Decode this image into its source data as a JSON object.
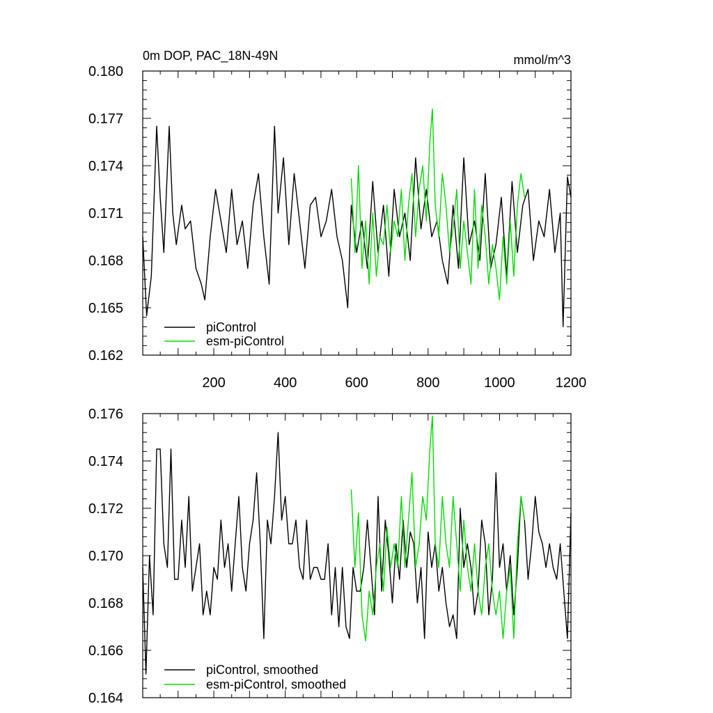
{
  "figure": {
    "title_left": "0m DOP, PAC_18N-49N",
    "title_right": "mmol/m^3"
  },
  "chart_data": [
    {
      "type": "line",
      "title": "0m DOP, PAC_18N-49N",
      "units": "mmol/m^3",
      "xlim": [
        1,
        1200
      ],
      "ylim": [
        0.162,
        0.18
      ],
      "x_ticks": [
        200,
        400,
        600,
        800,
        1000,
        1200
      ],
      "y_ticks": [
        0.162,
        0.165,
        0.168,
        0.171,
        0.174,
        0.177,
        0.18
      ],
      "y_tick_labels": [
        "0.162",
        "0.165",
        "0.168",
        "0.171",
        "0.174",
        "0.177",
        "0.180"
      ],
      "x_tick_labels": [
        "200",
        "400",
        "600",
        "800",
        "1000",
        "1200"
      ],
      "legend": [
        {
          "name": "piControl",
          "color": "#000000"
        },
        {
          "name": "esm-piControl",
          "color": "#00dd00"
        }
      ],
      "series": [
        {
          "name": "piControl",
          "color": "#000000",
          "x": [
            1,
            12,
            25,
            40,
            50,
            60,
            75,
            85,
            95,
            110,
            120,
            135,
            150,
            165,
            175,
            190,
            205,
            220,
            235,
            250,
            265,
            280,
            295,
            310,
            325,
            340,
            355,
            370,
            380,
            395,
            410,
            425,
            440,
            455,
            470,
            485,
            500,
            515,
            530,
            545,
            560,
            575,
            585,
            600,
            615,
            630,
            645,
            660,
            675,
            690,
            705,
            720,
            735,
            750,
            765,
            780,
            795,
            810,
            825,
            840,
            855,
            870,
            885,
            900,
            915,
            930,
            945,
            960,
            975,
            990,
            1005,
            1020,
            1035,
            1050,
            1065,
            1080,
            1095,
            1110,
            1125,
            1140,
            1155,
            1170,
            1178,
            1190,
            1200
          ],
          "y": [
            0.1695,
            0.1645,
            0.167,
            0.1765,
            0.172,
            0.1685,
            0.1765,
            0.171,
            0.169,
            0.1715,
            0.17,
            0.1705,
            0.1675,
            0.1665,
            0.1655,
            0.1695,
            0.1725,
            0.1705,
            0.1685,
            0.1725,
            0.169,
            0.1705,
            0.1675,
            0.1715,
            0.1735,
            0.1695,
            0.1665,
            0.1765,
            0.171,
            0.1745,
            0.169,
            0.1735,
            0.1705,
            0.1675,
            0.1715,
            0.172,
            0.1695,
            0.1705,
            0.1725,
            0.1695,
            0.168,
            0.165,
            0.1715,
            0.1685,
            0.1705,
            0.1675,
            0.173,
            0.1685,
            0.1715,
            0.167,
            0.1725,
            0.1695,
            0.171,
            0.168,
            0.1745,
            0.17,
            0.1725,
            0.1695,
            0.1705,
            0.168,
            0.1665,
            0.1715,
            0.1675,
            0.1745,
            0.169,
            0.1705,
            0.168,
            0.1735,
            0.1675,
            0.169,
            0.172,
            0.167,
            0.173,
            0.1685,
            0.1715,
            0.1725,
            0.168,
            0.1705,
            0.1695,
            0.1725,
            0.1685,
            0.171,
            0.1638,
            0.1733,
            0.172
          ]
        },
        {
          "name": "esm-piControl",
          "color": "#00dd00",
          "x": [
            585,
            595,
            605,
            615,
            625,
            635,
            645,
            655,
            665,
            675,
            685,
            695,
            705,
            715,
            725,
            735,
            745,
            755,
            765,
            775,
            785,
            795,
            805,
            812,
            820,
            830,
            840,
            850,
            860,
            870,
            880,
            890,
            900,
            910,
            920,
            930,
            940,
            950,
            960,
            970,
            980,
            990,
            1000,
            1010,
            1020,
            1030,
            1040,
            1050,
            1060,
            1070
          ],
          "y": [
            0.1732,
            0.1685,
            0.174,
            0.1675,
            0.1705,
            0.1665,
            0.171,
            0.167,
            0.1695,
            0.169,
            0.1715,
            0.1685,
            0.1705,
            0.1695,
            0.1725,
            0.168,
            0.1715,
            0.1735,
            0.1695,
            0.1725,
            0.174,
            0.1705,
            0.1755,
            0.1776,
            0.1715,
            0.1695,
            0.1735,
            0.1715,
            0.1685,
            0.17,
            0.1725,
            0.1675,
            0.1705,
            0.1685,
            0.1665,
            0.1725,
            0.1675,
            0.1715,
            0.1695,
            0.1665,
            0.169,
            0.1675,
            0.1655,
            0.1695,
            0.1665,
            0.1705,
            0.167,
            0.1715,
            0.1735,
            0.172
          ]
        }
      ]
    },
    {
      "type": "line",
      "xlim": [
        1,
        1200
      ],
      "ylim": [
        0.164,
        0.176
      ],
      "x_ticks": [
        200,
        400,
        600,
        800,
        1000,
        1200
      ],
      "y_ticks": [
        0.164,
        0.166,
        0.168,
        0.17,
        0.172,
        0.174,
        0.176
      ],
      "y_tick_labels": [
        "0.164",
        "0.166",
        "0.168",
        "0.170",
        "0.172",
        "0.174",
        "0.176"
      ],
      "legend": [
        {
          "name": "piControl, smoothed",
          "color": "#000000"
        },
        {
          "name": "esm-piControl, smoothed",
          "color": "#00dd00"
        }
      ],
      "series": [
        {
          "name": "piControl, smoothed",
          "color": "#000000",
          "x": [
            1,
            10,
            20,
            30,
            40,
            50,
            60,
            70,
            80,
            90,
            100,
            110,
            120,
            130,
            140,
            150,
            160,
            170,
            180,
            190,
            200,
            210,
            220,
            230,
            240,
            250,
            260,
            270,
            280,
            290,
            300,
            310,
            320,
            330,
            340,
            350,
            360,
            370,
            380,
            390,
            400,
            410,
            420,
            430,
            440,
            450,
            460,
            470,
            480,
            490,
            500,
            510,
            520,
            530,
            540,
            550,
            560,
            570,
            580,
            590,
            600,
            610,
            620,
            630,
            640,
            650,
            660,
            670,
            680,
            690,
            700,
            710,
            720,
            730,
            740,
            750,
            760,
            770,
            780,
            790,
            800,
            810,
            820,
            830,
            840,
            850,
            860,
            870,
            880,
            890,
            900,
            910,
            920,
            930,
            940,
            950,
            960,
            970,
            980,
            990,
            1000,
            1010,
            1020,
            1030,
            1040,
            1050,
            1060,
            1070,
            1080,
            1090,
            1100,
            1110,
            1120,
            1130,
            1140,
            1150,
            1160,
            1170,
            1180,
            1190,
            1200
          ],
          "y": [
            0.1695,
            0.165,
            0.17,
            0.1675,
            0.1745,
            0.1745,
            0.1705,
            0.1695,
            0.1745,
            0.169,
            0.169,
            0.1715,
            0.1695,
            0.1725,
            0.1685,
            0.1695,
            0.1705,
            0.1675,
            0.1685,
            0.1675,
            0.1695,
            0.169,
            0.1715,
            0.1695,
            0.1705,
            0.1685,
            0.1705,
            0.1725,
            0.1695,
            0.1685,
            0.1705,
            0.1715,
            0.1735,
            0.1705,
            0.1665,
            0.1715,
            0.1705,
            0.1725,
            0.1752,
            0.1715,
            0.1725,
            0.1705,
            0.1705,
            0.1715,
            0.1695,
            0.169,
            0.1715,
            0.169,
            0.1695,
            0.1695,
            0.169,
            0.169,
            0.1705,
            0.1675,
            0.1695,
            0.167,
            0.1695,
            0.167,
            0.1665,
            0.1695,
            0.1685,
            0.1685,
            0.1695,
            0.1715,
            0.1695,
            0.1675,
            0.1725,
            0.1685,
            0.1715,
            0.17,
            0.168,
            0.1705,
            0.169,
            0.1715,
            0.1695,
            0.171,
            0.1705,
            0.168,
            0.1695,
            0.1665,
            0.171,
            0.1695,
            0.1705,
            0.1685,
            0.1695,
            0.168,
            0.167,
            0.1675,
            0.1665,
            0.172,
            0.1695,
            0.1705,
            0.1695,
            0.1675,
            0.1685,
            0.1715,
            0.1705,
            0.1675,
            0.169,
            0.1735,
            0.1695,
            0.1705,
            0.1685,
            0.17,
            0.1675,
            0.1695,
            0.1725,
            0.1715,
            0.169,
            0.1705,
            0.1725,
            0.171,
            0.1705,
            0.1695,
            0.1705,
            0.1695,
            0.169,
            0.1705,
            0.1685,
            0.1665,
            0.1718
          ]
        },
        {
          "name": "esm-piControl, smoothed",
          "color": "#00dd00",
          "x": [
            585,
            595,
            605,
            615,
            625,
            635,
            645,
            655,
            665,
            675,
            685,
            695,
            705,
            715,
            725,
            735,
            745,
            755,
            765,
            775,
            785,
            795,
            805,
            812,
            820,
            830,
            840,
            850,
            860,
            870,
            880,
            890,
            900,
            910,
            920,
            930,
            940,
            950,
            960,
            970,
            980,
            990,
            1000,
            1010,
            1020,
            1030,
            1040,
            1050,
            1060,
            1070
          ],
          "y": [
            0.1728,
            0.1695,
            0.1718,
            0.1675,
            0.1664,
            0.1685,
            0.1675,
            0.1695,
            0.1705,
            0.1685,
            0.1712,
            0.1695,
            0.1705,
            0.1695,
            0.1725,
            0.1695,
            0.1715,
            0.1735,
            0.1695,
            0.1705,
            0.1725,
            0.1715,
            0.1745,
            0.1759,
            0.1705,
            0.1695,
            0.1725,
            0.1705,
            0.1695,
            0.1725,
            0.1705,
            0.1685,
            0.1715,
            0.1695,
            0.1685,
            0.1705,
            0.1685,
            0.1675,
            0.1695,
            0.1705,
            0.1685,
            0.1675,
            0.1685,
            0.1665,
            0.1685,
            0.1695,
            0.1665,
            0.1705,
            0.1725,
            0.1715
          ]
        }
      ]
    }
  ]
}
